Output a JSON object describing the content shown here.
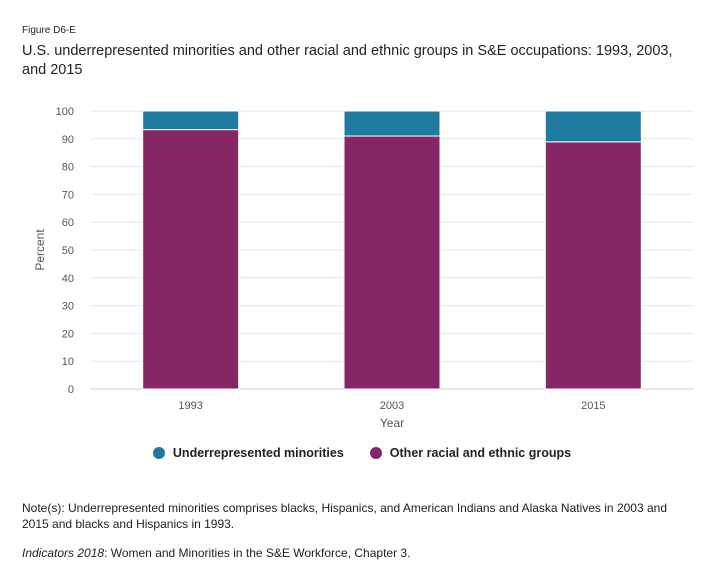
{
  "figure_label": "Figure D6-E",
  "title": "U.S. underrepresented minorities and other racial and ethnic groups in S&E occupations: 1993, 2003, and 2015",
  "note": "Note(s): Underrepresented minorities comprises blacks, Hispanics, and American Indians and Alaska Natives in 2003 and 2015 and blacks and Hispanics in 1993.",
  "source": {
    "italic": "Indicators 2018",
    "rest": ": Women and Minorities in the S&E Workforce, Chapter 3."
  },
  "colors": {
    "underrepresented": "#1f7aa0",
    "other": "#862665",
    "grid": "#e6e6e6",
    "axis_text": "#555555"
  },
  "chart_data": {
    "type": "bar",
    "stacked": true,
    "categories": [
      "1993",
      "2003",
      "2015"
    ],
    "series": [
      {
        "name": "Other racial and ethnic groups",
        "values": [
          93.3,
          91.0,
          88.9
        ]
      },
      {
        "name": "Underrepresented minorities",
        "values": [
          6.7,
          9.0,
          11.1
        ]
      }
    ],
    "xlabel": "Year",
    "ylabel": "Percent",
    "ylim": [
      0,
      100
    ],
    "yticks": [
      0,
      10,
      20,
      30,
      40,
      50,
      60,
      70,
      80,
      90,
      100
    ],
    "grid": true,
    "legend": [
      {
        "label": "Underrepresented minorities",
        "color": "#1f7aa0"
      },
      {
        "label": "Other racial and ethnic groups",
        "color": "#862665"
      }
    ],
    "legend_position": "bottom"
  }
}
